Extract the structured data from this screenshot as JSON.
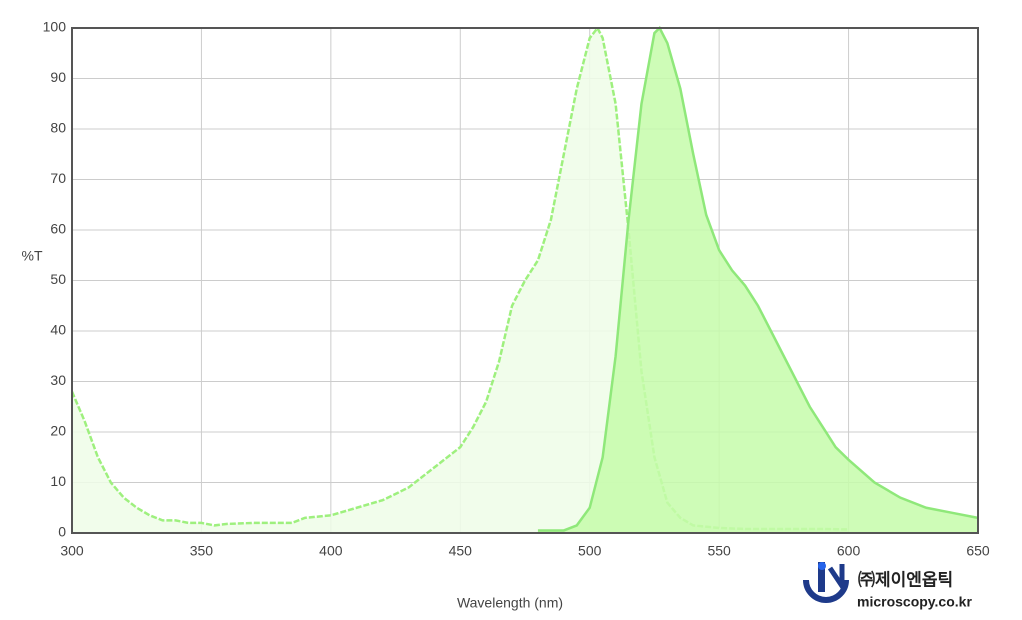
{
  "chart_data": {
    "type": "area",
    "x_label": "Wavelength (nm)",
    "y_label": "%T",
    "xlim": [
      300,
      650
    ],
    "xticks": [
      300,
      350,
      400,
      450,
      500,
      550,
      600,
      650
    ],
    "ylim": [
      0,
      100
    ],
    "yticks": [
      0,
      10,
      20,
      30,
      40,
      50,
      60,
      70,
      80,
      90,
      100
    ],
    "grid": true,
    "series": [
      {
        "color": "#9ef07e",
        "fill": "#effde8",
        "dashed": true,
        "x": [
          300,
          305,
          310,
          315,
          320,
          325,
          330,
          335,
          340,
          345,
          350,
          355,
          360,
          370,
          380,
          385,
          390,
          400,
          410,
          420,
          430,
          440,
          450,
          455,
          460,
          465,
          470,
          475,
          480,
          485,
          490,
          495,
          500,
          503,
          505,
          510,
          515,
          520,
          525,
          530,
          535,
          540,
          550,
          560,
          580,
          590,
          600
        ],
        "y": [
          28,
          22,
          15,
          10,
          7,
          5,
          3.5,
          2.5,
          2.5,
          2,
          2,
          1.5,
          1.8,
          2,
          2,
          2,
          3,
          3.5,
          5,
          6.5,
          9,
          13,
          17,
          21,
          26,
          34,
          45,
          50,
          54,
          62,
          75,
          88,
          98,
          100,
          98,
          85,
          60,
          32,
          15,
          6,
          3,
          1.5,
          1,
          0.8,
          0.8,
          0.8,
          0.7
        ]
      },
      {
        "color": "#8fe87a",
        "fill": "#c5fcaa",
        "dashed": false,
        "x": [
          480,
          490,
          495,
          500,
          505,
          510,
          515,
          520,
          525,
          527,
          530,
          535,
          540,
          545,
          550,
          555,
          560,
          565,
          570,
          575,
          580,
          585,
          590,
          595,
          600,
          610,
          620,
          630,
          640,
          650
        ],
        "y": [
          0.5,
          0.5,
          1.5,
          5,
          15,
          35,
          62,
          85,
          99,
          100,
          97,
          88,
          75,
          63,
          56,
          52,
          49,
          45,
          40,
          35,
          30,
          25,
          21,
          17,
          14.5,
          10,
          7,
          5,
          4,
          3
        ]
      }
    ]
  },
  "logo": {
    "name": "㈜제이엔옵틱",
    "url": "microscopy.co.kr"
  }
}
